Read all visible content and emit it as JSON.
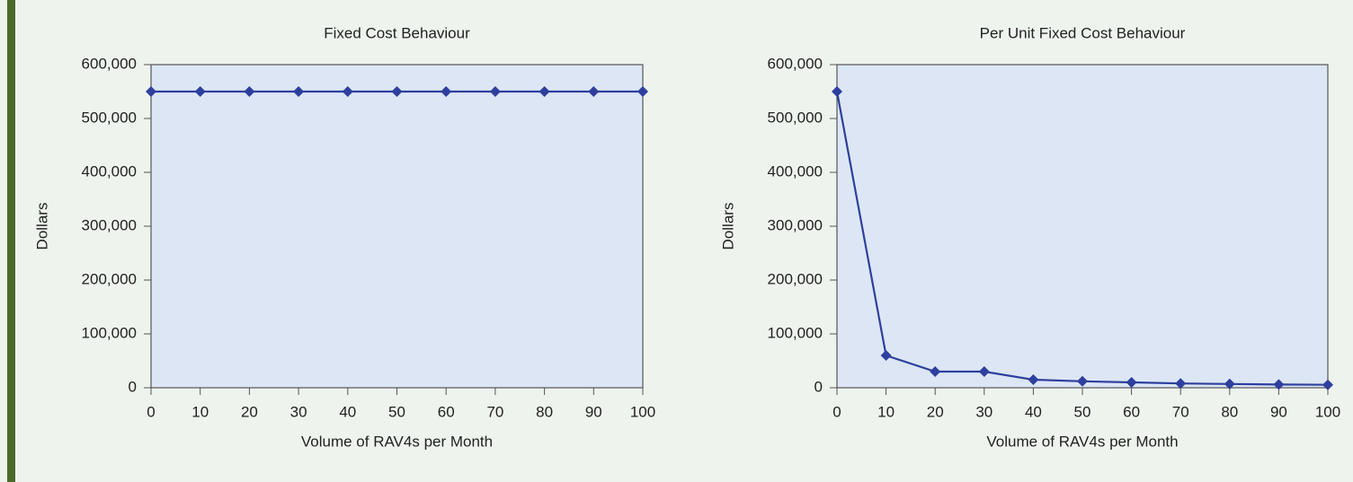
{
  "chart_data": [
    {
      "type": "line",
      "title": "Fixed Cost Behaviour",
      "xlabel": "Volume of RAV4s per Month",
      "ylabel": "Dollars",
      "x": [
        0,
        10,
        20,
        30,
        40,
        50,
        60,
        70,
        80,
        90,
        100
      ],
      "values": [
        550000,
        550000,
        550000,
        550000,
        550000,
        550000,
        550000,
        550000,
        550000,
        550000,
        550000
      ],
      "color": "#2e3f9e",
      "xlim": [
        0,
        100
      ],
      "xticks": [
        0,
        10,
        20,
        30,
        40,
        50,
        60,
        70,
        80,
        90,
        100
      ],
      "ylim": [
        0,
        600000
      ],
      "yticks": [
        0,
        {
          "value": 100000,
          "label": "100,000"
        },
        {
          "value": 200000,
          "label": "200,000"
        },
        {
          "value": 300000,
          "label": "300,000"
        },
        {
          "value": 400000,
          "label": "400,000"
        },
        {
          "value": 500000,
          "label": "500,000"
        },
        {
          "value": 600000,
          "label": "600,000"
        }
      ],
      "grid": false
    },
    {
      "type": "line",
      "title": "Per Unit Fixed Cost Behaviour",
      "xlabel": "Volume of RAV4s per Month",
      "ylabel": "Dollars",
      "x": [
        0,
        10,
        20,
        30,
        40,
        50,
        60,
        70,
        80,
        90,
        100
      ],
      "values": [
        550000,
        60000,
        30000,
        30000,
        15000,
        12000,
        10000,
        8000,
        7000,
        6000,
        5500
      ],
      "color": "#2e3f9e",
      "xlim": [
        0,
        100
      ],
      "xticks": [
        0,
        10,
        20,
        30,
        40,
        50,
        60,
        70,
        80,
        90,
        100
      ],
      "ylim": [
        0,
        600000
      ],
      "yticks": [
        0,
        {
          "value": 100000,
          "label": "100,000"
        },
        {
          "value": 200000,
          "label": "200,000"
        },
        {
          "value": 300000,
          "label": "300,000"
        },
        {
          "value": 400000,
          "label": "400,000"
        },
        {
          "value": 500000,
          "label": "500,000"
        },
        {
          "value": 600000,
          "label": "600,000"
        }
      ],
      "grid": false
    }
  ]
}
